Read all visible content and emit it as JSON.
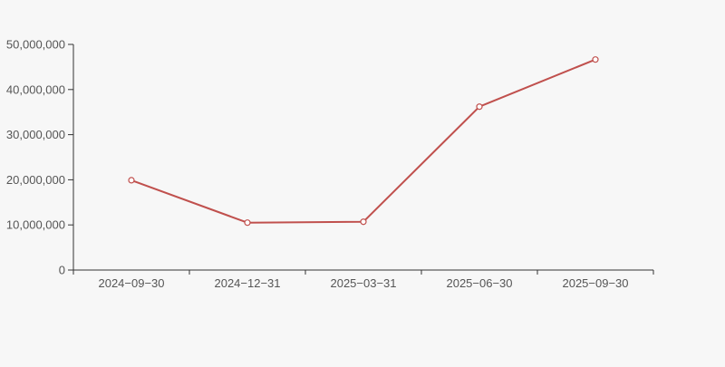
{
  "page": {
    "background_color": "#f7f7f7"
  },
  "chart_data": {
    "type": "line",
    "title": "",
    "categories": [
      "2024−09−30",
      "2024−12−31",
      "2025−03−31",
      "2025−06−30",
      "2025−09−30"
    ],
    "series": [
      {
        "name": "series-1",
        "color": "#c0504d",
        "values": [
          19900000,
          10500000,
          10700000,
          36200000,
          46650000
        ]
      }
    ],
    "xlabel": "",
    "ylabel": "",
    "ylim": [
      0,
      50000000
    ],
    "ytick_step": 10000000,
    "ytick_labels": [
      "0",
      "10,000,000",
      "20,000,000",
      "30,000,000",
      "40,000,000",
      "50,000,000"
    ],
    "grid": false,
    "legend_position": "none",
    "marker": {
      "shape": "circle",
      "fill": "#ffffff",
      "radius": 3
    },
    "axis_color": "#333333",
    "label_color": "#555555"
  }
}
